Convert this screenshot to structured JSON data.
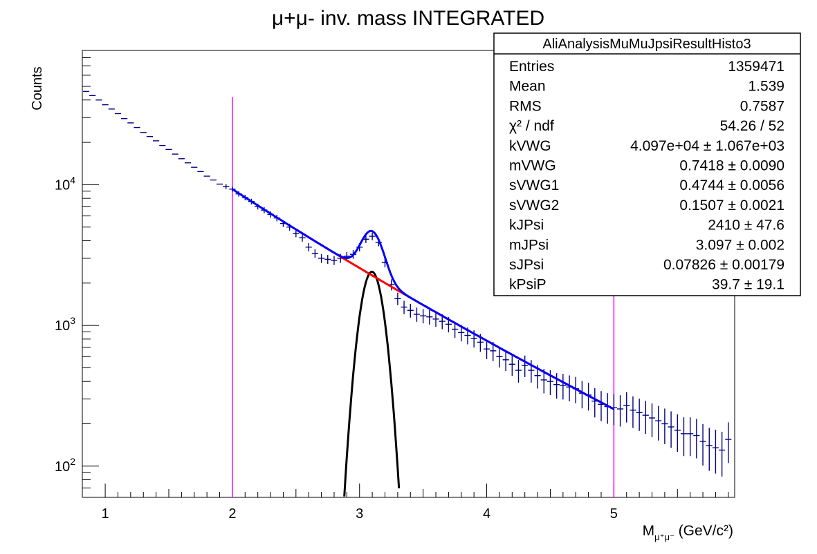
{
  "chart_data": {
    "type": "scatter",
    "title": "μ+μ- inv. mass INTEGRATED",
    "ylabel": "Counts",
    "xlabel": {
      "main": "M",
      "sub": "μ⁺μ⁻",
      "unit": " (GeV/c²)"
    },
    "xlim": [
      0.82,
      5.95
    ],
    "ylim": [
      60,
      90000
    ],
    "yscale": "log",
    "grid": false,
    "x_ticks": [
      1,
      2,
      3,
      4,
      5
    ],
    "y_ticks": [
      {
        "value": 100,
        "base": "10",
        "exp": "2"
      },
      {
        "value": 1000,
        "base": "10",
        "exp": "3"
      },
      {
        "value": 10000,
        "base": "10",
        "exp": "4"
      }
    ],
    "fit_range_markers": [
      2,
      5
    ],
    "colors": {
      "data": "#000080",
      "total_fit": "#0000ff",
      "background_fit": "#ff0000",
      "signal_fit": "#000000",
      "range_marker": "#ff00ff"
    },
    "series": [
      {
        "kind": "histogram",
        "x": [
          0.85,
          0.9,
          0.95,
          1.0,
          1.05,
          1.1,
          1.15,
          1.2,
          1.25,
          1.3,
          1.35,
          1.4,
          1.45,
          1.5,
          1.55,
          1.6,
          1.65,
          1.7,
          1.75,
          1.8,
          1.85,
          1.9,
          1.95,
          2.0,
          2.05,
          2.1,
          2.15,
          2.2,
          2.25,
          2.3,
          2.35,
          2.4,
          2.45,
          2.5,
          2.55,
          2.6,
          2.65,
          2.7,
          2.75,
          2.8,
          2.85,
          2.9,
          2.95,
          3.0,
          3.05,
          3.1,
          3.15,
          3.2,
          3.25,
          3.3,
          3.35,
          3.4,
          3.45,
          3.5,
          3.55,
          3.6,
          3.65,
          3.7,
          3.75,
          3.8,
          3.85,
          3.9,
          3.95,
          4.0,
          4.05,
          4.1,
          4.15,
          4.2,
          4.25,
          4.3,
          4.35,
          4.4,
          4.45,
          4.5,
          4.55,
          4.6,
          4.65,
          4.7,
          4.75,
          4.8,
          4.85,
          4.9,
          4.95,
          5.0,
          5.05,
          5.1,
          5.15,
          5.2,
          5.25,
          5.3,
          5.35,
          5.4,
          5.45,
          5.5,
          5.55,
          5.6,
          5.65,
          5.7,
          5.75,
          5.8,
          5.85,
          5.9
        ],
        "y": [
          46000,
          43000,
          40000,
          37000,
          34500,
          32000,
          29500,
          27500,
          25500,
          23500,
          22000,
          20500,
          19000,
          17800,
          16500,
          15300,
          14300,
          13300,
          12400,
          11500,
          10800,
          10100,
          9700,
          9300,
          8600,
          8100,
          7600,
          7000,
          6600,
          6150,
          5800,
          5300,
          5000,
          4500,
          4200,
          3600,
          3250,
          3000,
          2950,
          2900,
          3000,
          3100,
          3200,
          3600,
          4100,
          4300,
          3900,
          2800,
          1950,
          1550,
          1350,
          1280,
          1200,
          1170,
          1150,
          1110,
          1070,
          1020,
          940,
          890,
          850,
          810,
          760,
          680,
          660,
          600,
          570,
          530,
          480,
          520,
          480,
          440,
          410,
          400,
          380,
          375,
          365,
          355,
          330,
          320,
          290,
          275,
          265,
          260,
          255,
          270,
          250,
          240,
          230,
          220,
          210,
          200,
          190,
          180,
          170,
          170,
          165,
          150,
          140,
          135,
          130,
          155
        ],
        "style": "crosses"
      },
      {
        "kind": "fit_total"
      },
      {
        "kind": "fit_background"
      },
      {
        "kind": "fit_signal"
      }
    ]
  },
  "stats_box": {
    "title": "AliAnalysisMuMuJpsiResultHisto3",
    "rows": [
      {
        "label": "Entries",
        "value": "1359471"
      },
      {
        "label": "Mean",
        "value": "1.539"
      },
      {
        "label": "RMS",
        "value": "0.7587"
      },
      {
        "label": "χ² / ndf",
        "value": "54.26 / 52"
      },
      {
        "label": "kVWG",
        "value": "4.097e+04 ± 1.067e+03"
      },
      {
        "label": "mVWG",
        "value": "0.7418 ± 0.0090"
      },
      {
        "label": "sVWG1",
        "value": "0.4744 ± 0.0056"
      },
      {
        "label": "sVWG2",
        "value": "0.1507 ± 0.0021"
      },
      {
        "label": "kJPsi",
        "value": "2410 ± 47.6"
      },
      {
        "label": "mJPsi",
        "value": "3.097 ± 0.002"
      },
      {
        "label": "sJPsi",
        "value": "0.07826 ± 0.00179"
      },
      {
        "label": "kPsiP",
        "value": "39.7 ± 19.1"
      }
    ]
  }
}
